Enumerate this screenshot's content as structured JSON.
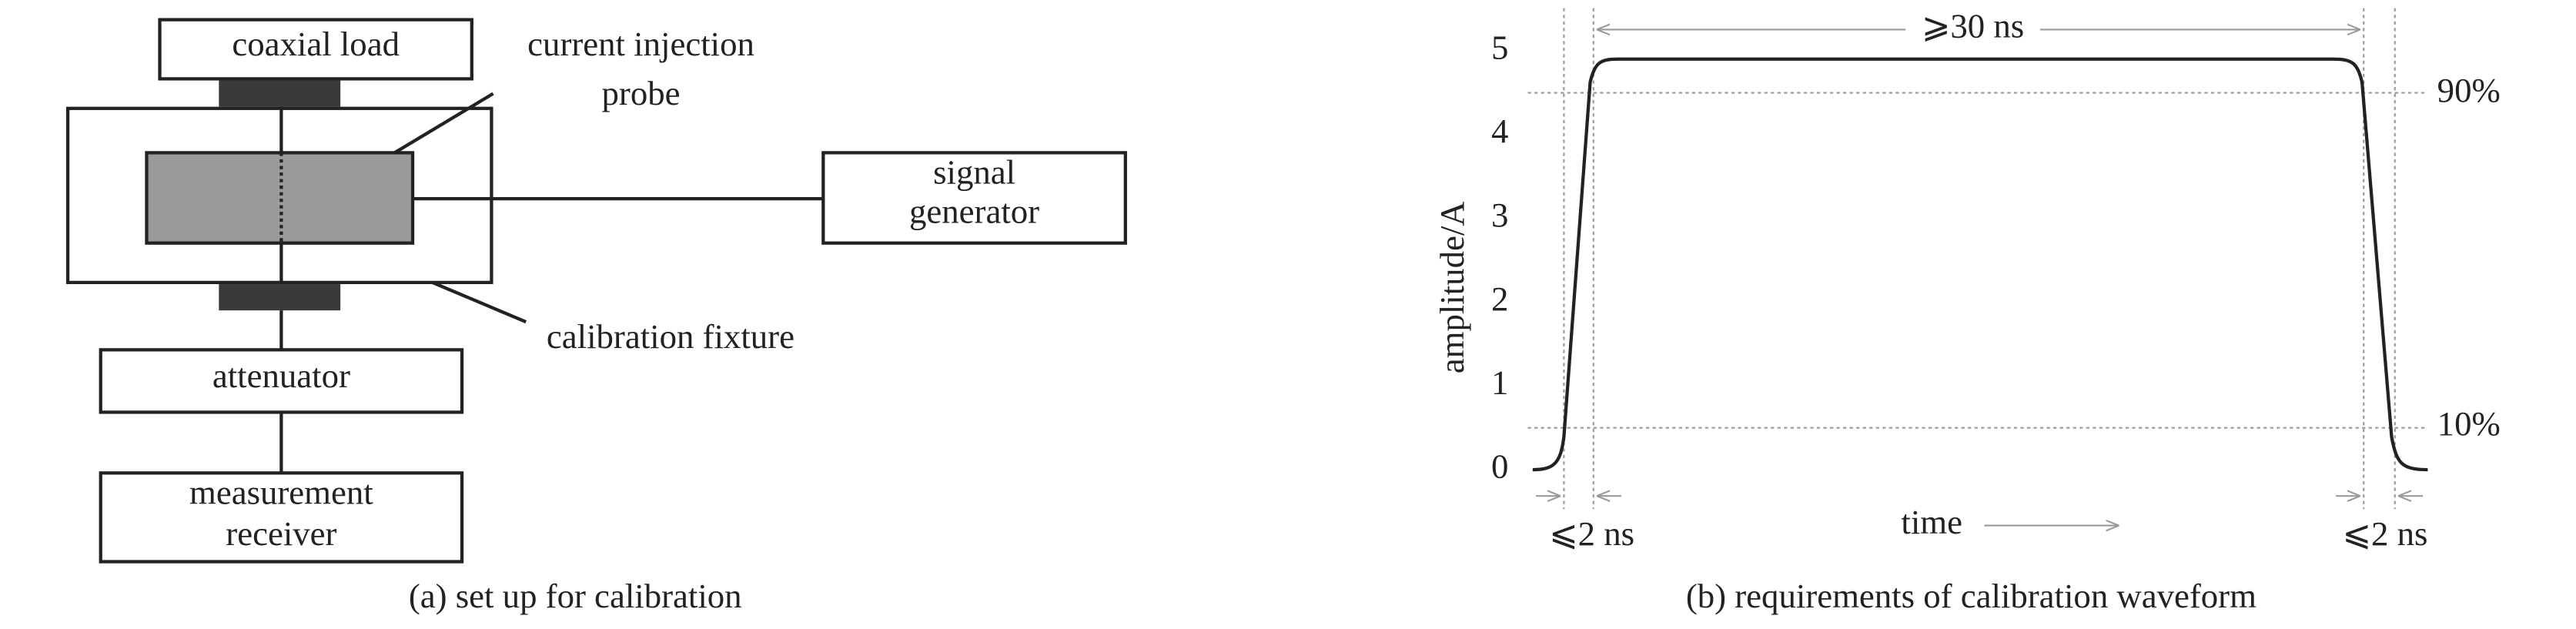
{
  "panel_a": {
    "coaxial_load": "coaxial load",
    "probe_line1": "current injection",
    "probe_line2": "probe",
    "signal_line1": "signal",
    "signal_line2": "generator",
    "fixture": "calibration fixture",
    "attenuator": "attenuator",
    "receiver_line1": "measurement",
    "receiver_line2": "receiver",
    "caption": "(a) set up for calibration"
  },
  "panel_b": {
    "y_label": "amplitude/A",
    "yticks": [
      0,
      1,
      2,
      3,
      4,
      5
    ],
    "top_span": "⩾30 ns",
    "rise_span": "⩽2 ns",
    "fall_span": "⩽2 ns",
    "x_label": "time",
    "level_high": "90%",
    "level_low": "10%",
    "caption": "(b) requirements of calibration waveform"
  }
}
